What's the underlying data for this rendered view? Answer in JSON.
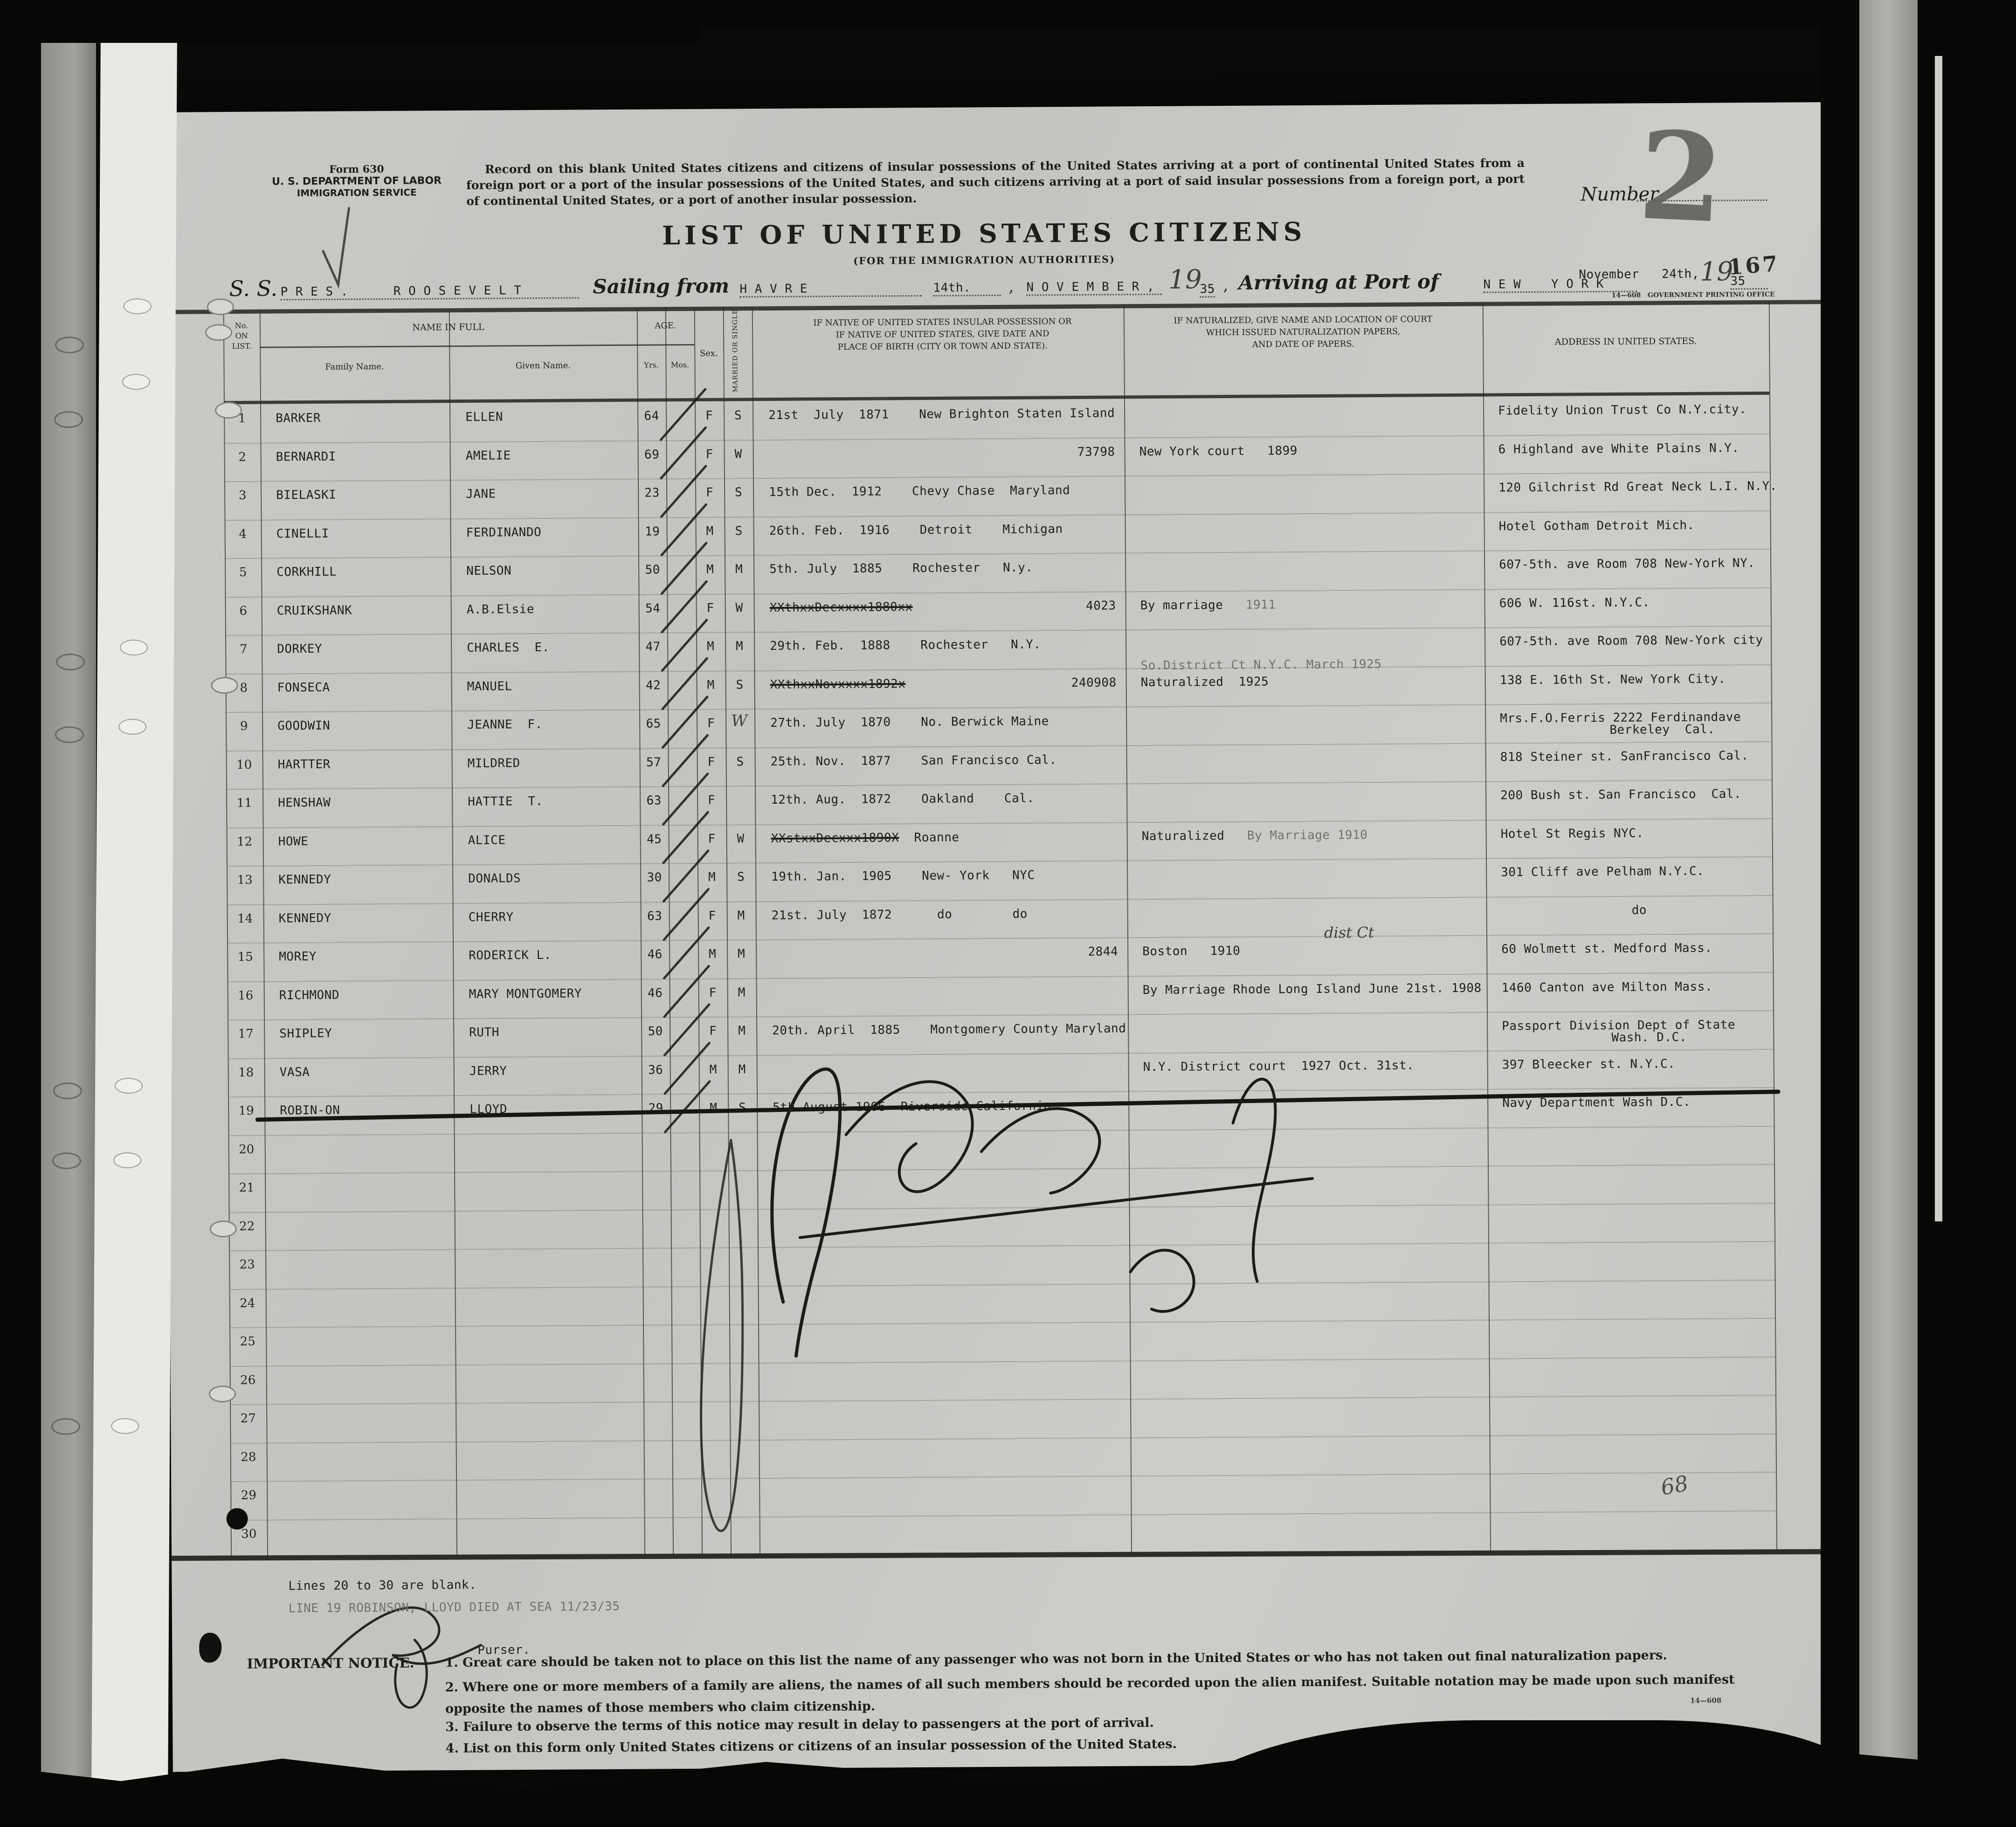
{
  "form_header": {
    "form_number": "Form 630",
    "department": "U. S. DEPARTMENT OF LABOR",
    "service": "IMMIGRATION SERVICE",
    "instructions": "Record on this blank United States citizens and citizens of insular possessions of the United States arriving at a port of continental United States from a foreign port or a port of the insular possessions of the United States, and such citizens arriving at a port of said insular possessions from a foreign port, a port of continental United States, or a port of another insular possession.",
    "title": "LIST OF UNITED STATES CITIZENS",
    "subtitle": "(FOR THE IMMIGRATION AUTHORITIES)",
    "number_label": "Number",
    "number_value": "2",
    "page_number": "167",
    "print_code": "14—608",
    "print_office": "GOVERNMENT PRINTING OFFICE"
  },
  "voyage": {
    "vessel_label": "S. S.",
    "vessel_name": "P R E S .      R O O S E V E L T",
    "sailing_label": "Sailing from",
    "port_of_departure": "H A V R E",
    "sailing_day": "14th.",
    "separator_comma": ",",
    "sailing_month": "N O V E M B E R ,",
    "year_prefix": "19",
    "sailing_year": "35",
    "arriving_label": "Arriving at Port of",
    "port_of_arrival": "N E W    Y O R K",
    "arrival_date": "November   24th,",
    "arrival_year_prefix": "19",
    "arrival_year": "35"
  },
  "table": {
    "headers": {
      "no_on_list": "No.\nON\nLIST.",
      "name_in_full": "NAME IN FULL",
      "family_name": "Family Name.",
      "given_name": "Given Name.",
      "age": "AGE.",
      "yrs": "Yrs.",
      "mos": "Mos.",
      "sex": "Sex.",
      "married_or_single": "MARRIED OR SINGLE",
      "birth": "IF NATIVE OF UNITED STATES INSULAR POSSESSION OR\nIF NATIVE OF UNITED STATES, GIVE DATE AND\nPLACE OF BIRTH (CITY OR TOWN AND STATE).",
      "naturalization": "IF NATURALIZED, GIVE NAME AND LOCATION OF COURT\nWHICH ISSUED NATURALIZATION PAPERS,\nAND DATE OF PAPERS.",
      "address": "ADDRESS IN UNITED STATES."
    },
    "rows": [
      {
        "no": "1",
        "family": "BARKER",
        "given": "ELLEN",
        "yrs": "64",
        "sex": "F",
        "married": "S",
        "birth": "21st  July  1871    New Brighton Staten Island",
        "address": "Fidelity Union Trust Co N.Y.city."
      },
      {
        "no": "2",
        "family": "BERNARDI",
        "given": "AMELIE",
        "yrs": "69",
        "sex": "F",
        "married": "W",
        "cert_no": "73798",
        "nat": "New York court   1899",
        "address": "6 Highland ave White Plains N.Y."
      },
      {
        "no": "3",
        "family": "BIELASKI",
        "given": "JANE",
        "yrs": "23",
        "sex": "F",
        "married": "S",
        "birth": "15th Dec.  1912    Chevy Chase  Maryland",
        "address": "120 Gilchrist Rd Great Neck L.I. N.Y."
      },
      {
        "no": "4",
        "family": "CINELLI",
        "given": "FERDINANDO",
        "yrs": "19",
        "sex": "M",
        "married": "S",
        "birth": "26th. Feb.  1916    Detroit    Michigan",
        "address": "Hotel Gotham Detroit Mich."
      },
      {
        "no": "5",
        "family": "CORKHILL",
        "given": "NELSON",
        "yrs": "50",
        "sex": "M",
        "married": "M",
        "birth": "5th. July  1885    Rochester   N.y.",
        "address": "607-5th. ave Room 708 New-York NY."
      },
      {
        "no": "6",
        "family": "CRUIKSHANK",
        "given": "A.B.Elsie",
        "yrs": "54",
        "sex": "F",
        "married": "W",
        "birth_struck": "XXthxxDecxxxx1880xx",
        "cert_no": "4023",
        "nat": "By marriage",
        "nat_faint": "1911",
        "address": "606 W. 116st. N.Y.C."
      },
      {
        "no": "7",
        "family": "DORKEY",
        "given": "CHARLES  E.",
        "yrs": "47",
        "sex": "M",
        "married": "M",
        "birth": "29th. Feb.  1888    Rochester   N.Y.",
        "address": "607-5th. ave Room 708 New-York city"
      },
      {
        "no": "8",
        "family": "FONSECA",
        "given": "MANUEL",
        "yrs": "42",
        "sex": "M",
        "married": "S",
        "birth_struck": "XXthxxNovxxxx1892x",
        "cert_no": "240908",
        "nat_above": "So.District Ct N.Y.C. March 1925",
        "nat": "Naturalized  1925",
        "address": "138 E. 16th St. New York City."
      },
      {
        "no": "9",
        "family": "GOODWIN",
        "given": "JEANNE  F.",
        "yrs": "65",
        "sex": "F",
        "married_hand": "W",
        "birth": "27th. July  1870    No. Berwick Maine",
        "address": "Mrs.F.O.Ferris 2222 Ferdinandave",
        "address2": "Berkeley  Cal."
      },
      {
        "no": "10",
        "family": "HARTTER",
        "given": "MILDRED",
        "yrs": "57",
        "sex": "F",
        "married": "S",
        "birth": "25th. Nov.  1877    San Francisco Cal.",
        "address": "818 Steiner st. SanFrancisco Cal."
      },
      {
        "no": "11",
        "family": "HENSHAW",
        "given": "HATTIE  T.",
        "yrs": "63",
        "sex": "F",
        "birth": "12th. Aug.  1872    Oakland    Cal.",
        "address": "200 Bush st. San Francisco  Cal."
      },
      {
        "no": "12",
        "family": "HOWE",
        "given": "ALICE",
        "yrs": "45",
        "sex": "F",
        "married": "W",
        "birth_struck": "XXstxxDecxxx1890X",
        "birth": "  Roanne",
        "nat": "Naturalized",
        "nat_faint": "By Marriage 1910",
        "address": "Hotel St Regis NYC."
      },
      {
        "no": "13",
        "family": "KENNEDY",
        "given": "DONALDS",
        "yrs": "30",
        "sex": "M",
        "married": "S",
        "birth": "19th. Jan.  1905    New- York   NYC",
        "address": "301 Cliff ave Pelham N.Y.C."
      },
      {
        "no": "14",
        "family": "KENNEDY",
        "given": "CHERRY",
        "yrs": "63",
        "sex": "F",
        "married": "M",
        "birth": "21st. July  1872      do        do",
        "address": "do",
        "address_center": true
      },
      {
        "no": "15",
        "family": "MOREY",
        "given": "RODERICK L.",
        "yrs": "46",
        "sex": "M",
        "married": "M",
        "cert_no": "2844",
        "nat_hand": "dist Ct",
        "nat": "Boston   1910",
        "address": "60 Wolmett st. Medford Mass."
      },
      {
        "no": "16",
        "family": "RICHMOND",
        "given": "MARY MONTGOMERY",
        "yrs": "46",
        "sex": "F",
        "married": "M",
        "nat": "By Marriage Rhode Long Island June 21st. 1908",
        "address": "1460 Canton ave Milton Mass."
      },
      {
        "no": "17",
        "family": "SHIPLEY",
        "given": "RUTH",
        "yrs": "50",
        "sex": "F",
        "married": "M",
        "birth": "20th. April  1885    Montgomery County Maryland",
        "address": "Passport Division Dept of State",
        "address2": "Wash. D.C."
      },
      {
        "no": "18",
        "family": "VASA",
        "given": "JERRY",
        "yrs": "36",
        "sex": "M",
        "married": "M",
        "nat": "N.Y. District court  1927 Oct. 31st.",
        "address": "397 Bleecker st. N.Y.C."
      },
      {
        "no": "19",
        "family": "ROBIN-ON",
        "given": "LLOYD",
        "yrs": "29",
        "sex": "M",
        "married": "S",
        "birth": "5th August 1906  Riverside California",
        "address": "Navy Department Wash D.C.",
        "struck": true
      }
    ],
    "blank_line_numbers": [
      "20",
      "21",
      "22",
      "23",
      "24",
      "25",
      "26",
      "27",
      "28",
      "29",
      "30"
    ]
  },
  "footer": {
    "blank_note": "Lines 20 to 30 are blank.",
    "death_note": "LINE 19 ROBINSON, LLOYD DIED AT SEA 11/23/35",
    "purser_label": "Purser.",
    "notice_label": "IMPORTANT NOTICE.—",
    "notice_items": [
      "1. Great care should be taken not to place on this list the name of any passenger who was not born in the United States or who has not taken out final naturalization papers.",
      "2. Where one or more members of a family are aliens, the names of all such members should be recorded upon the alien manifest.   Suitable notation may be made upon such manifest opposite the names of those members who claim citizenship.",
      "3. Failure to observe the terms of this notice may result in delay to passengers at the port of arrival.",
      "4. List on this form only United States citizens or citizens of an insular possession of the United States."
    ],
    "print_code": "14—608",
    "tally_mark": "68"
  }
}
